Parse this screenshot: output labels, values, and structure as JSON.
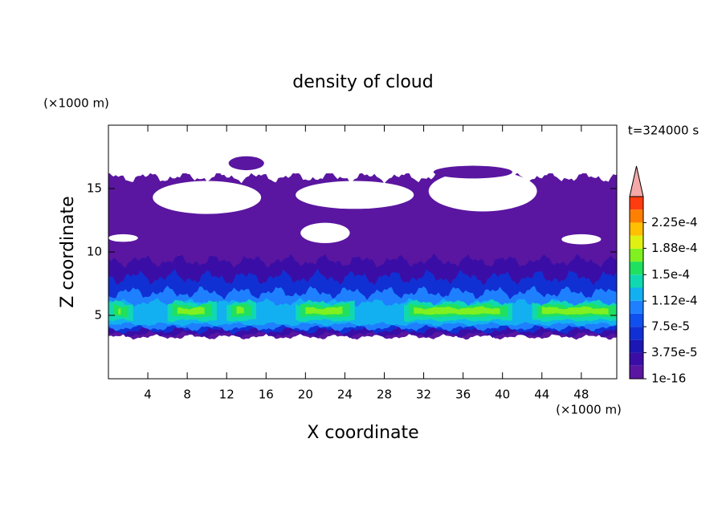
{
  "chart_data": {
    "type": "contour",
    "title": "density of cloud",
    "x_label": "X coordinate",
    "y_label": "Z coordinate",
    "x_unit": "(×1000 m)",
    "y_unit": "(×1000 m)",
    "annotation": "t=324000 s",
    "xlim": [
      0,
      51.6
    ],
    "ylim": [
      0,
      20
    ],
    "xticks": [
      4,
      8,
      12,
      16,
      20,
      24,
      28,
      32,
      36,
      40,
      44,
      48
    ],
    "yticks": [
      5,
      10,
      15
    ],
    "levels": [
      1e-16,
      1.875e-05,
      3.75e-05,
      5.625e-05,
      7.5e-05,
      9.375e-05,
      0.0001125,
      0.00013125,
      0.00015,
      0.00016875,
      0.0001875,
      0.00020625,
      0.000225,
      0.00024375,
      0.0002625
    ],
    "colors": [
      "#5a16a0",
      "#3a0ea6",
      "#1c16b4",
      "#1030d4",
      "#1050ee",
      "#1f80ff",
      "#12b0f0",
      "#10d8b0",
      "#20e060",
      "#80f020",
      "#e0f010",
      "#ffc000",
      "#ff8000",
      "#ff3c10"
    ],
    "extend_color": "#f4a8a8",
    "cbar_ticks": [
      {
        "value": 1e-16,
        "label": "1e-16"
      },
      {
        "value": 3.75e-05,
        "label": "3.75e-5"
      },
      {
        "value": 7.5e-05,
        "label": "7.5e-5"
      },
      {
        "value": 0.000112,
        "label": "1.12e-4"
      },
      {
        "value": 0.00015,
        "label": "1.5e-4"
      },
      {
        "value": 0.000188,
        "label": "1.88e-4"
      },
      {
        "value": 0.000225,
        "label": "2.25e-4"
      }
    ]
  }
}
